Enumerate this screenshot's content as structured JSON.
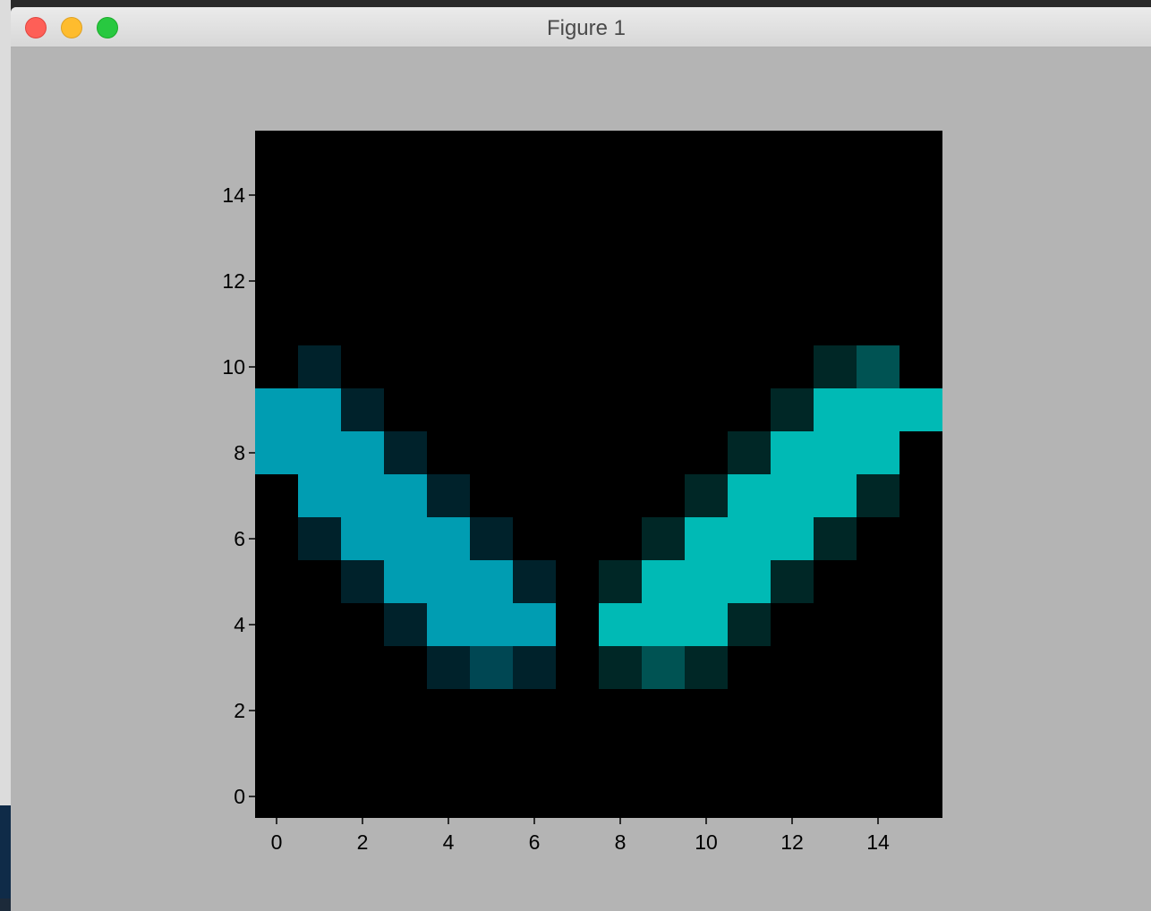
{
  "window": {
    "title": "Figure 1"
  },
  "colors": {
    "figure_bg": "#b4b4b4",
    "left_bright": "#009db2",
    "left_mid": "#004753",
    "left_dim": "#00222b",
    "right_bright": "#00bab5",
    "right_mid": "#005353",
    "right_dim": "#002726",
    "background": "#000000"
  },
  "chart_data": {
    "type": "heatmap",
    "title": "",
    "xlabel": "",
    "ylabel": "",
    "xlim": [
      -0.5,
      15.5
    ],
    "ylim": [
      -0.5,
      15.5
    ],
    "origin": "lower",
    "xticks": [
      0,
      2,
      4,
      6,
      8,
      10,
      12,
      14
    ],
    "yticks": [
      0,
      2,
      4,
      6,
      8,
      10,
      12,
      14
    ],
    "xtick_labels": [
      "0",
      "2",
      "4",
      "6",
      "8",
      "10",
      "12",
      "14"
    ],
    "ytick_labels": [
      "0",
      "2",
      "4",
      "6",
      "8",
      "10",
      "12",
      "14"
    ],
    "grid": false,
    "legend": false,
    "cells": [
      {
        "x": 1,
        "y": 10,
        "v": "left_dim"
      },
      {
        "x": 0,
        "y": 9,
        "v": "left_bright"
      },
      {
        "x": 1,
        "y": 9,
        "v": "left_bright"
      },
      {
        "x": 2,
        "y": 9,
        "v": "left_dim"
      },
      {
        "x": 0,
        "y": 8,
        "v": "left_bright"
      },
      {
        "x": 1,
        "y": 8,
        "v": "left_bright"
      },
      {
        "x": 2,
        "y": 8,
        "v": "left_bright"
      },
      {
        "x": 3,
        "y": 8,
        "v": "left_dim"
      },
      {
        "x": 1,
        "y": 7,
        "v": "left_bright"
      },
      {
        "x": 2,
        "y": 7,
        "v": "left_bright"
      },
      {
        "x": 3,
        "y": 7,
        "v": "left_bright"
      },
      {
        "x": 4,
        "y": 7,
        "v": "left_dim"
      },
      {
        "x": 1,
        "y": 6,
        "v": "left_dim"
      },
      {
        "x": 2,
        "y": 6,
        "v": "left_bright"
      },
      {
        "x": 3,
        "y": 6,
        "v": "left_bright"
      },
      {
        "x": 4,
        "y": 6,
        "v": "left_bright"
      },
      {
        "x": 5,
        "y": 6,
        "v": "left_dim"
      },
      {
        "x": 2,
        "y": 5,
        "v": "left_dim"
      },
      {
        "x": 3,
        "y": 5,
        "v": "left_bright"
      },
      {
        "x": 4,
        "y": 5,
        "v": "left_bright"
      },
      {
        "x": 5,
        "y": 5,
        "v": "left_bright"
      },
      {
        "x": 6,
        "y": 5,
        "v": "left_dim"
      },
      {
        "x": 3,
        "y": 4,
        "v": "left_dim"
      },
      {
        "x": 4,
        "y": 4,
        "v": "left_bright"
      },
      {
        "x": 5,
        "y": 4,
        "v": "left_bright"
      },
      {
        "x": 6,
        "y": 4,
        "v": "left_bright"
      },
      {
        "x": 4,
        "y": 3,
        "v": "left_dim"
      },
      {
        "x": 5,
        "y": 3,
        "v": "left_mid"
      },
      {
        "x": 6,
        "y": 3,
        "v": "left_dim"
      },
      {
        "x": 13,
        "y": 10,
        "v": "right_dim"
      },
      {
        "x": 14,
        "y": 10,
        "v": "right_mid"
      },
      {
        "x": 12,
        "y": 9,
        "v": "right_dim"
      },
      {
        "x": 13,
        "y": 9,
        "v": "right_bright"
      },
      {
        "x": 14,
        "y": 9,
        "v": "right_bright"
      },
      {
        "x": 15,
        "y": 9,
        "v": "right_bright"
      },
      {
        "x": 11,
        "y": 8,
        "v": "right_dim"
      },
      {
        "x": 12,
        "y": 8,
        "v": "right_bright"
      },
      {
        "x": 13,
        "y": 8,
        "v": "right_bright"
      },
      {
        "x": 14,
        "y": 8,
        "v": "right_bright"
      },
      {
        "x": 10,
        "y": 7,
        "v": "right_dim"
      },
      {
        "x": 11,
        "y": 7,
        "v": "right_bright"
      },
      {
        "x": 12,
        "y": 7,
        "v": "right_bright"
      },
      {
        "x": 13,
        "y": 7,
        "v": "right_bright"
      },
      {
        "x": 14,
        "y": 7,
        "v": "right_dim"
      },
      {
        "x": 9,
        "y": 6,
        "v": "right_dim"
      },
      {
        "x": 10,
        "y": 6,
        "v": "right_bright"
      },
      {
        "x": 11,
        "y": 6,
        "v": "right_bright"
      },
      {
        "x": 12,
        "y": 6,
        "v": "right_bright"
      },
      {
        "x": 13,
        "y": 6,
        "v": "right_dim"
      },
      {
        "x": 8,
        "y": 5,
        "v": "right_dim"
      },
      {
        "x": 9,
        "y": 5,
        "v": "right_bright"
      },
      {
        "x": 10,
        "y": 5,
        "v": "right_bright"
      },
      {
        "x": 11,
        "y": 5,
        "v": "right_bright"
      },
      {
        "x": 12,
        "y": 5,
        "v": "right_dim"
      },
      {
        "x": 8,
        "y": 4,
        "v": "right_bright"
      },
      {
        "x": 9,
        "y": 4,
        "v": "right_bright"
      },
      {
        "x": 10,
        "y": 4,
        "v": "right_bright"
      },
      {
        "x": 11,
        "y": 4,
        "v": "right_dim"
      },
      {
        "x": 8,
        "y": 3,
        "v": "right_dim"
      },
      {
        "x": 9,
        "y": 3,
        "v": "right_mid"
      },
      {
        "x": 10,
        "y": 3,
        "v": "right_dim"
      }
    ]
  }
}
